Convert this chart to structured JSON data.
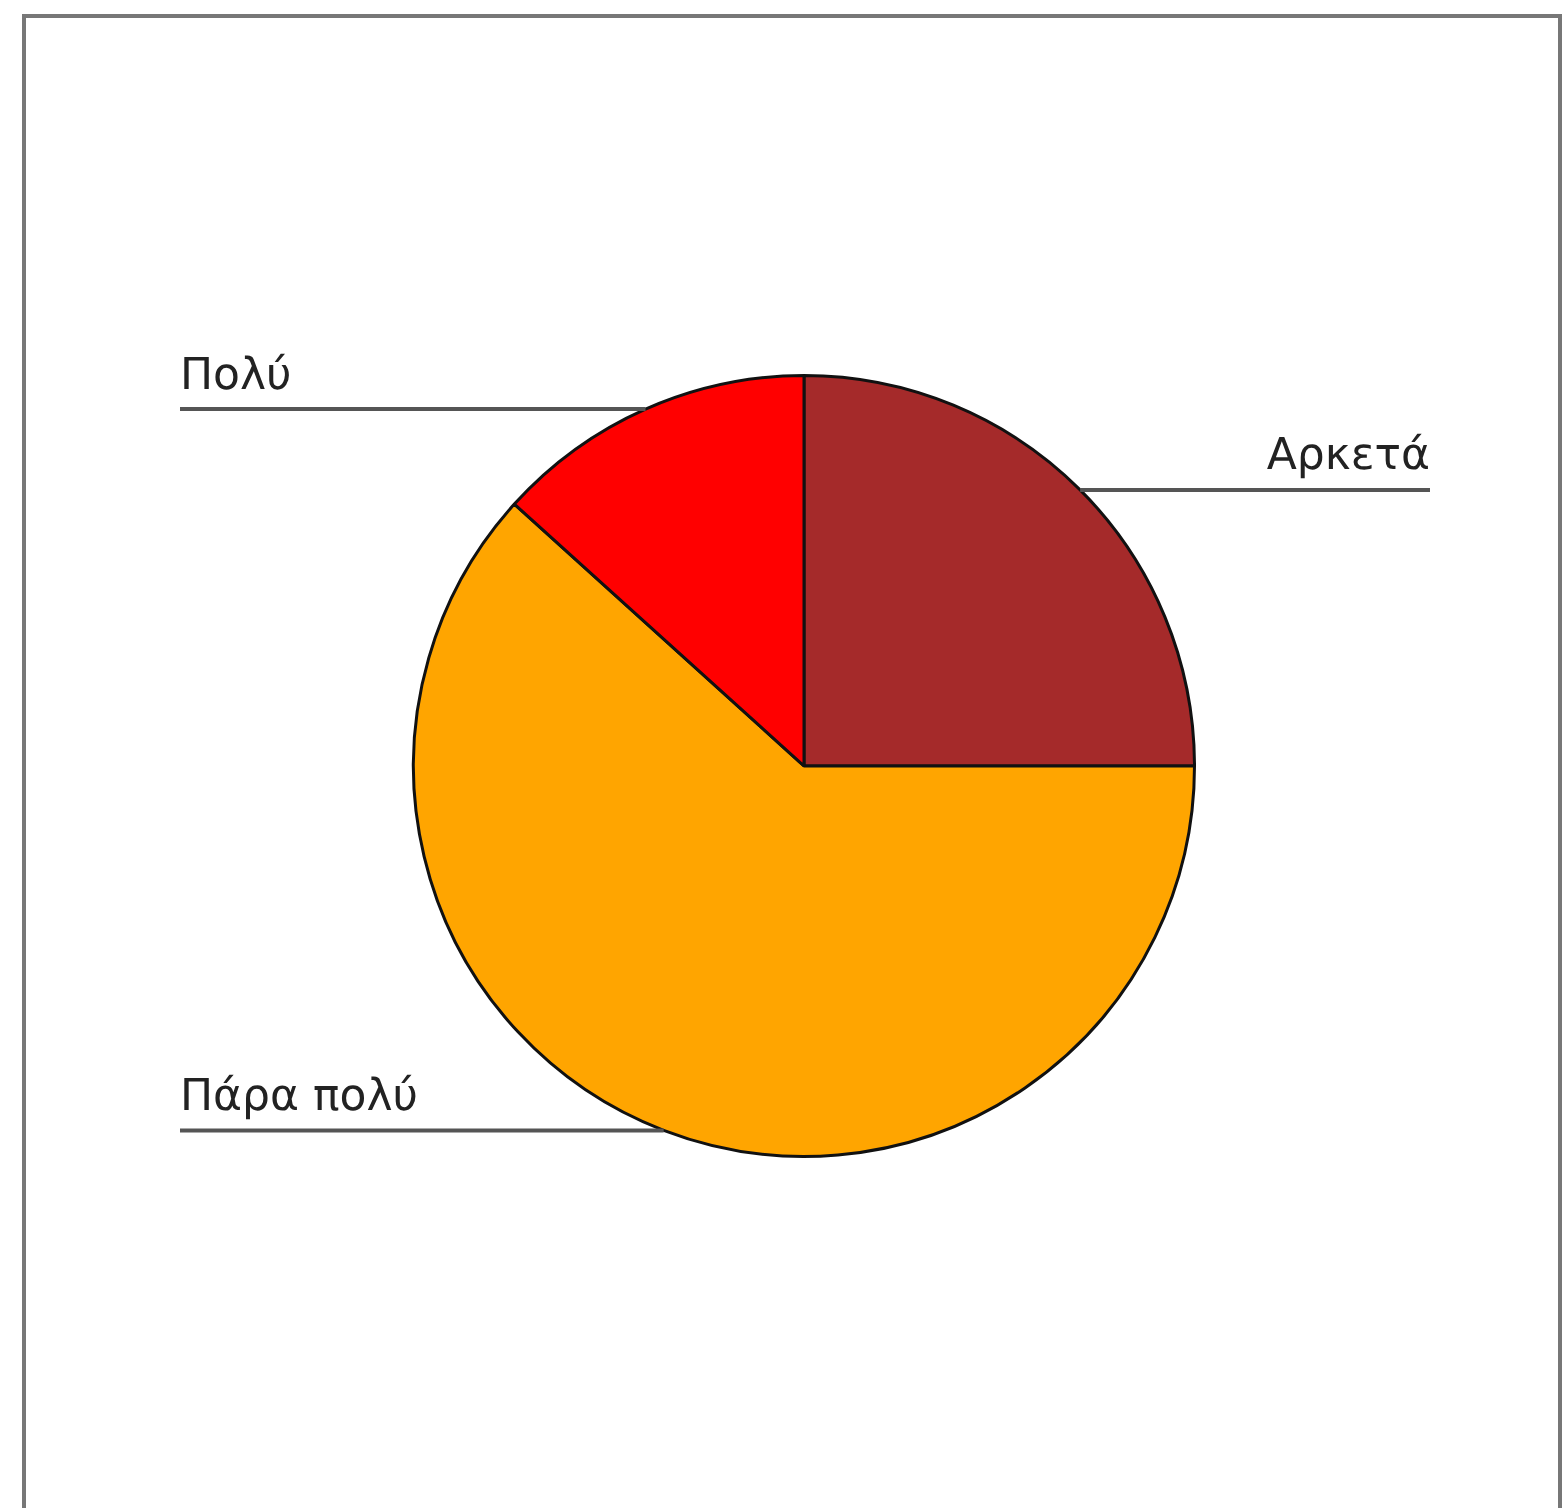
{
  "chart_data": {
    "type": "pie",
    "categories": [
      "Αρκετά",
      "Πάρα πολύ",
      "Πολύ"
    ],
    "values": [
      25,
      61.7,
      13.3
    ],
    "colors": [
      "#a52a2a",
      "#ffa500",
      "#ff0000"
    ],
    "legend": false
  }
}
